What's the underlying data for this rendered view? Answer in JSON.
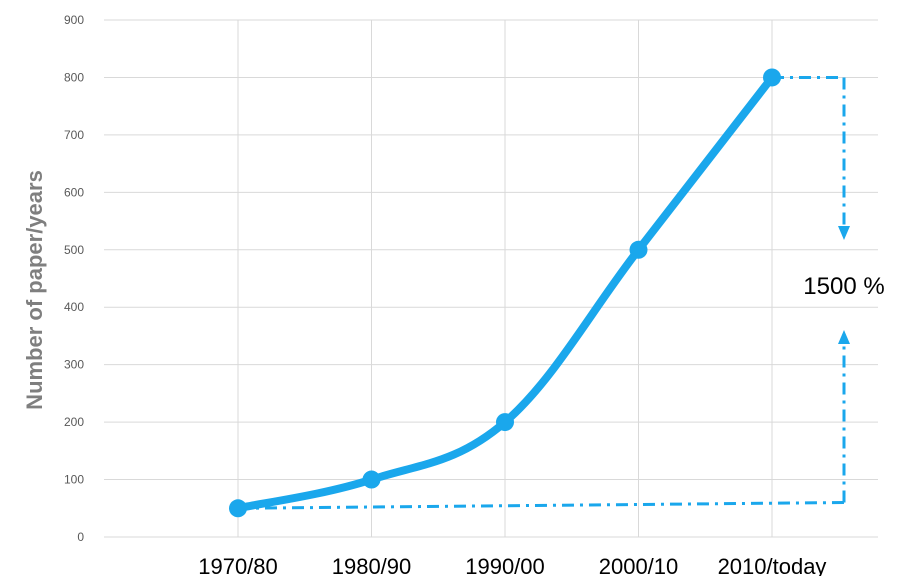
{
  "chart_data": {
    "type": "line",
    "categories": [
      "1970/80",
      "1980/90",
      "1990/00",
      "2000/10",
      "2010/today"
    ],
    "series": [
      {
        "values": [
          50,
          100,
          200,
          500,
          800
        ]
      }
    ],
    "title": "",
    "xlabel": "",
    "ylabel": "Number of paper/years",
    "ylim": [
      0,
      900
    ],
    "yticks": [
      0,
      100,
      200,
      300,
      400,
      500,
      600,
      700,
      800,
      900
    ],
    "grid": true,
    "annotation": {
      "label": "1500 %",
      "from_value": 50,
      "to_value": 800
    },
    "colors": {
      "series": "#1aa7ec",
      "annotation": "#1aa7ec",
      "grid": "#d9d9d9"
    }
  }
}
